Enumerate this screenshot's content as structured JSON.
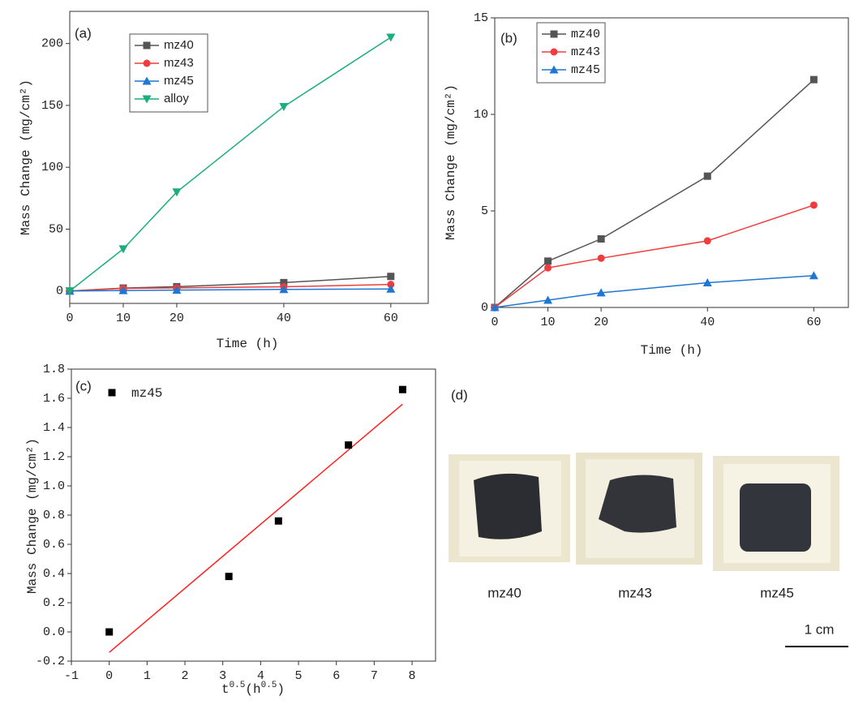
{
  "chart_data": [
    {
      "type": "line",
      "title": "(a)",
      "xlabel": "Time (h)",
      "ylabel": "Mass Change (mg/cm²)",
      "x": [
        0,
        10,
        20,
        40,
        60
      ],
      "series": [
        {
          "name": "mz40",
          "color": "#555555",
          "marker": "square",
          "values": [
            0,
            2.4,
            3.5,
            6.8,
            11.8
          ]
        },
        {
          "name": "mz43",
          "color": "#f03c3c",
          "marker": "circle",
          "values": [
            0,
            2.1,
            2.5,
            3.4,
            5.3
          ]
        },
        {
          "name": "mz45",
          "color": "#1f77d4",
          "marker": "triangle-up",
          "values": [
            0,
            0.4,
            0.75,
            1.28,
            1.65
          ]
        },
        {
          "name": "alloy",
          "color": "#1aae7a",
          "marker": "triangle-down",
          "values": [
            0,
            34,
            80,
            149,
            205
          ]
        }
      ],
      "xlim": [
        0,
        67
      ],
      "xticks": [
        0,
        10,
        20,
        40,
        60
      ],
      "ylim": [
        -10,
        226
      ],
      "yticks": [
        0,
        50,
        100,
        150,
        200
      ],
      "legend": "upper left"
    },
    {
      "type": "line",
      "title": "(b)",
      "xlabel": "Time (h)",
      "ylabel": "Mass Change (mg/cm²)",
      "x": [
        0,
        10,
        20,
        40,
        60
      ],
      "series": [
        {
          "name": "mz40",
          "color": "#555555",
          "marker": "square",
          "values": [
            0,
            2.4,
            3.55,
            6.8,
            11.8
          ]
        },
        {
          "name": "mz43",
          "color": "#f03c3c",
          "marker": "circle",
          "values": [
            0,
            2.05,
            2.55,
            3.45,
            5.3
          ]
        },
        {
          "name": "mz45",
          "color": "#1f77d4",
          "marker": "triangle-up",
          "values": [
            0,
            0.38,
            0.76,
            1.28,
            1.65
          ]
        }
      ],
      "xlim": [
        0,
        66.5
      ],
      "xticks": [
        0,
        10,
        20,
        40,
        60
      ],
      "ylim": [
        0,
        15
      ],
      "yticks": [
        0,
        5,
        10,
        15
      ],
      "legend": "upper left"
    },
    {
      "type": "scatter",
      "title": "(c)",
      "xlabel": [
        "t",
        "0.5",
        "(h",
        "0.5",
        ")"
      ],
      "ylabel": "Mass Change (mg/cm²)",
      "x": [
        0,
        3.16,
        4.47,
        6.32,
        7.75
      ],
      "series": [
        {
          "name": "mz45",
          "color": "#000000",
          "marker": "square",
          "values": [
            0,
            0.38,
            0.76,
            1.28,
            1.66
          ]
        }
      ],
      "fit": {
        "x": [
          0,
          7.75
        ],
        "y": [
          -0.14,
          1.56
        ],
        "color": "#ff2020"
      },
      "xlim": [
        -1,
        8.62
      ],
      "xticks": [
        -1,
        0,
        1,
        2,
        3,
        4,
        5,
        6,
        7,
        8
      ],
      "ylim": [
        -0.2,
        1.8
      ],
      "yticks": [
        -0.2,
        {
          "value": 0,
          "label": "0.0"
        },
        0.2,
        0.4,
        0.6,
        0.8,
        {
          "value": 1,
          "label": "1.0"
        },
        1.2,
        1.4,
        1.6,
        1.8
      ],
      "legend": "upper left"
    }
  ],
  "panel_d": {
    "label": "(d)",
    "samples": [
      "mz40",
      "mz43",
      "mz45"
    ],
    "scale_bar": "1 cm"
  }
}
